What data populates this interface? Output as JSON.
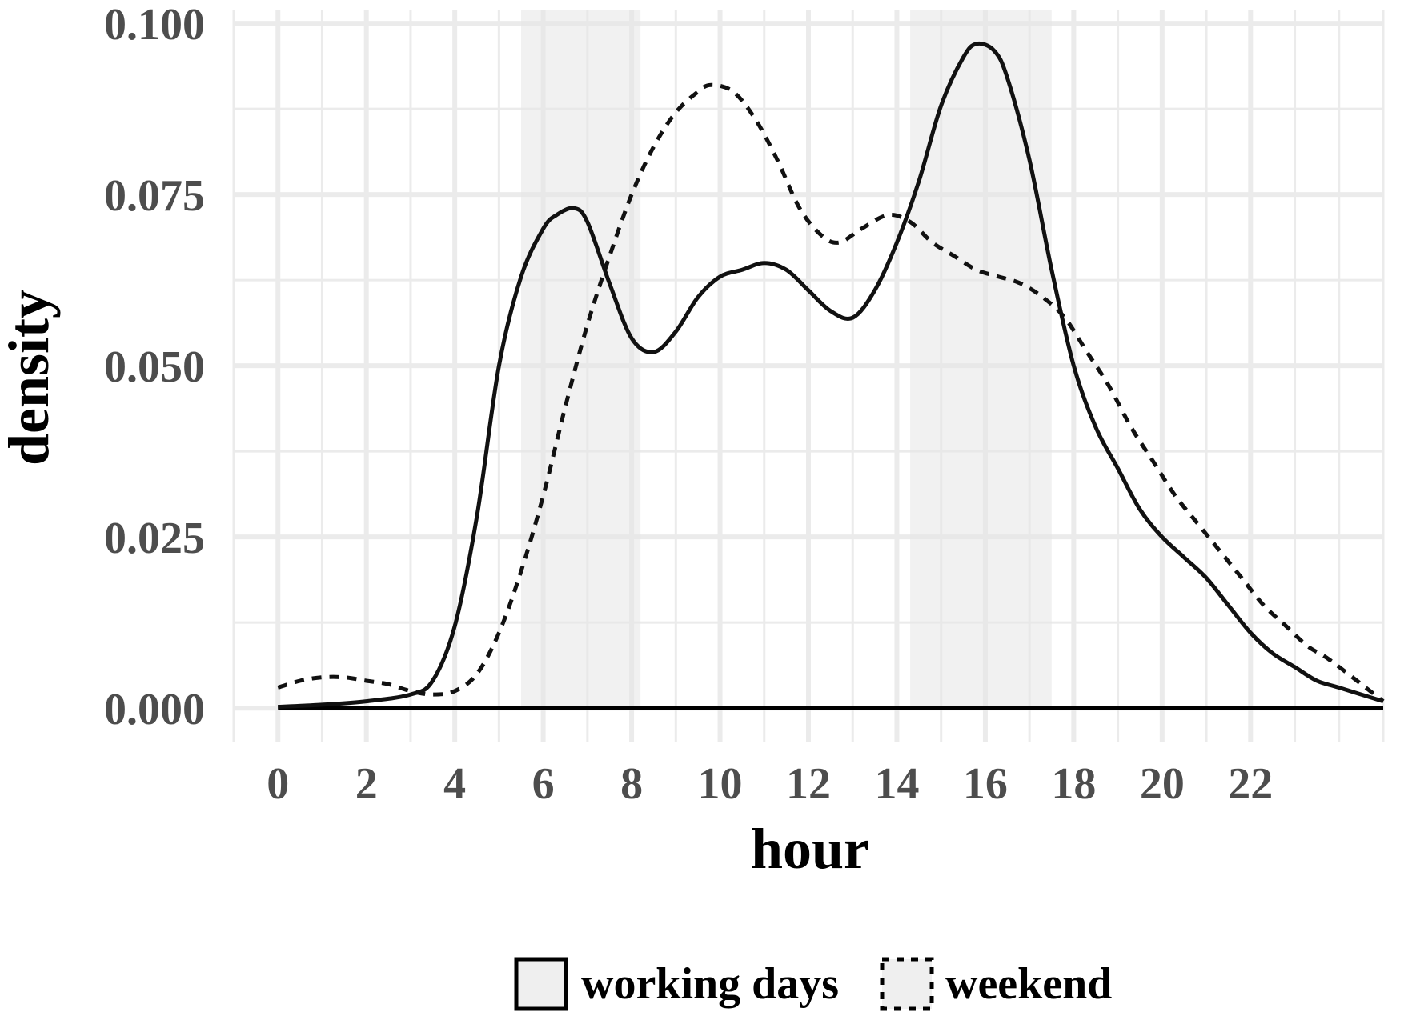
{
  "chart_data": {
    "type": "area",
    "xlabel": "hour",
    "ylabel": "density",
    "xlim": [
      -1,
      25
    ],
    "ylim": [
      -0.005,
      0.102
    ],
    "x_ticks": [
      0,
      2,
      4,
      6,
      8,
      10,
      12,
      14,
      16,
      18,
      20,
      22
    ],
    "x_tick_labels": [
      "0",
      "2",
      "4",
      "6",
      "8",
      "10",
      "12",
      "14",
      "16",
      "18",
      "20",
      "22"
    ],
    "y_ticks": [
      0,
      0.025,
      0.05,
      0.075,
      0.1
    ],
    "y_tick_labels": [
      "0.000",
      "0.025",
      "0.050",
      "0.075",
      "0.100"
    ],
    "grid": true,
    "legend_position": "bottom",
    "shaded_intervals": [
      [
        5.5,
        8.2
      ],
      [
        14.3,
        17.5
      ]
    ],
    "shade_color": "#e6e6e6",
    "grid_color": "#ebebeb",
    "series": [
      {
        "name": "working days",
        "line_style": "solid",
        "x": [
          0,
          1,
          2,
          3,
          3.5,
          4,
          4.5,
          5,
          5.5,
          6,
          6.3,
          6.7,
          7,
          7.5,
          8,
          8.5,
          9,
          9.5,
          10,
          10.5,
          11,
          11.5,
          12,
          12.5,
          13,
          13.5,
          14,
          14.5,
          15,
          15.5,
          15.8,
          16.2,
          16.5,
          17,
          17.5,
          18,
          18.5,
          19,
          19.5,
          20,
          20.5,
          21,
          21.5,
          22,
          22.5,
          23,
          23.5,
          24,
          25
        ],
        "y": [
          0.0002,
          0.0005,
          0.001,
          0.002,
          0.004,
          0.012,
          0.028,
          0.05,
          0.063,
          0.07,
          0.072,
          0.073,
          0.071,
          0.062,
          0.054,
          0.052,
          0.055,
          0.06,
          0.063,
          0.064,
          0.065,
          0.064,
          0.061,
          0.058,
          0.057,
          0.061,
          0.068,
          0.077,
          0.088,
          0.095,
          0.097,
          0.096,
          0.092,
          0.08,
          0.064,
          0.05,
          0.041,
          0.035,
          0.029,
          0.025,
          0.022,
          0.019,
          0.015,
          0.011,
          0.008,
          0.006,
          0.004,
          0.003,
          0.001
        ]
      },
      {
        "name": "weekend",
        "line_style": "dashed",
        "x": [
          0,
          0.5,
          1,
          1.5,
          2,
          2.5,
          3,
          3.5,
          4,
          4.5,
          5,
          5.5,
          6,
          6.5,
          7,
          7.5,
          8,
          8.5,
          9,
          9.5,
          9.8,
          10.3,
          10.8,
          11.3,
          11.8,
          12.3,
          12.7,
          13.2,
          13.8,
          14.3,
          14.8,
          15.3,
          15.8,
          16.3,
          16.8,
          17.3,
          17.8,
          18.3,
          18.8,
          19.3,
          19.8,
          20.3,
          20.8,
          21.3,
          21.8,
          22.3,
          22.8,
          23.3,
          23.8,
          25
        ],
        "y": [
          0.003,
          0.004,
          0.0045,
          0.0045,
          0.004,
          0.0035,
          0.0025,
          0.002,
          0.0025,
          0.005,
          0.011,
          0.02,
          0.031,
          0.044,
          0.056,
          0.066,
          0.075,
          0.082,
          0.087,
          0.09,
          0.091,
          0.09,
          0.086,
          0.08,
          0.073,
          0.069,
          0.068,
          0.07,
          0.072,
          0.071,
          0.068,
          0.066,
          0.064,
          0.063,
          0.062,
          0.06,
          0.057,
          0.052,
          0.047,
          0.041,
          0.036,
          0.031,
          0.027,
          0.023,
          0.019,
          0.015,
          0.012,
          0.009,
          0.007,
          0.001
        ]
      }
    ]
  }
}
